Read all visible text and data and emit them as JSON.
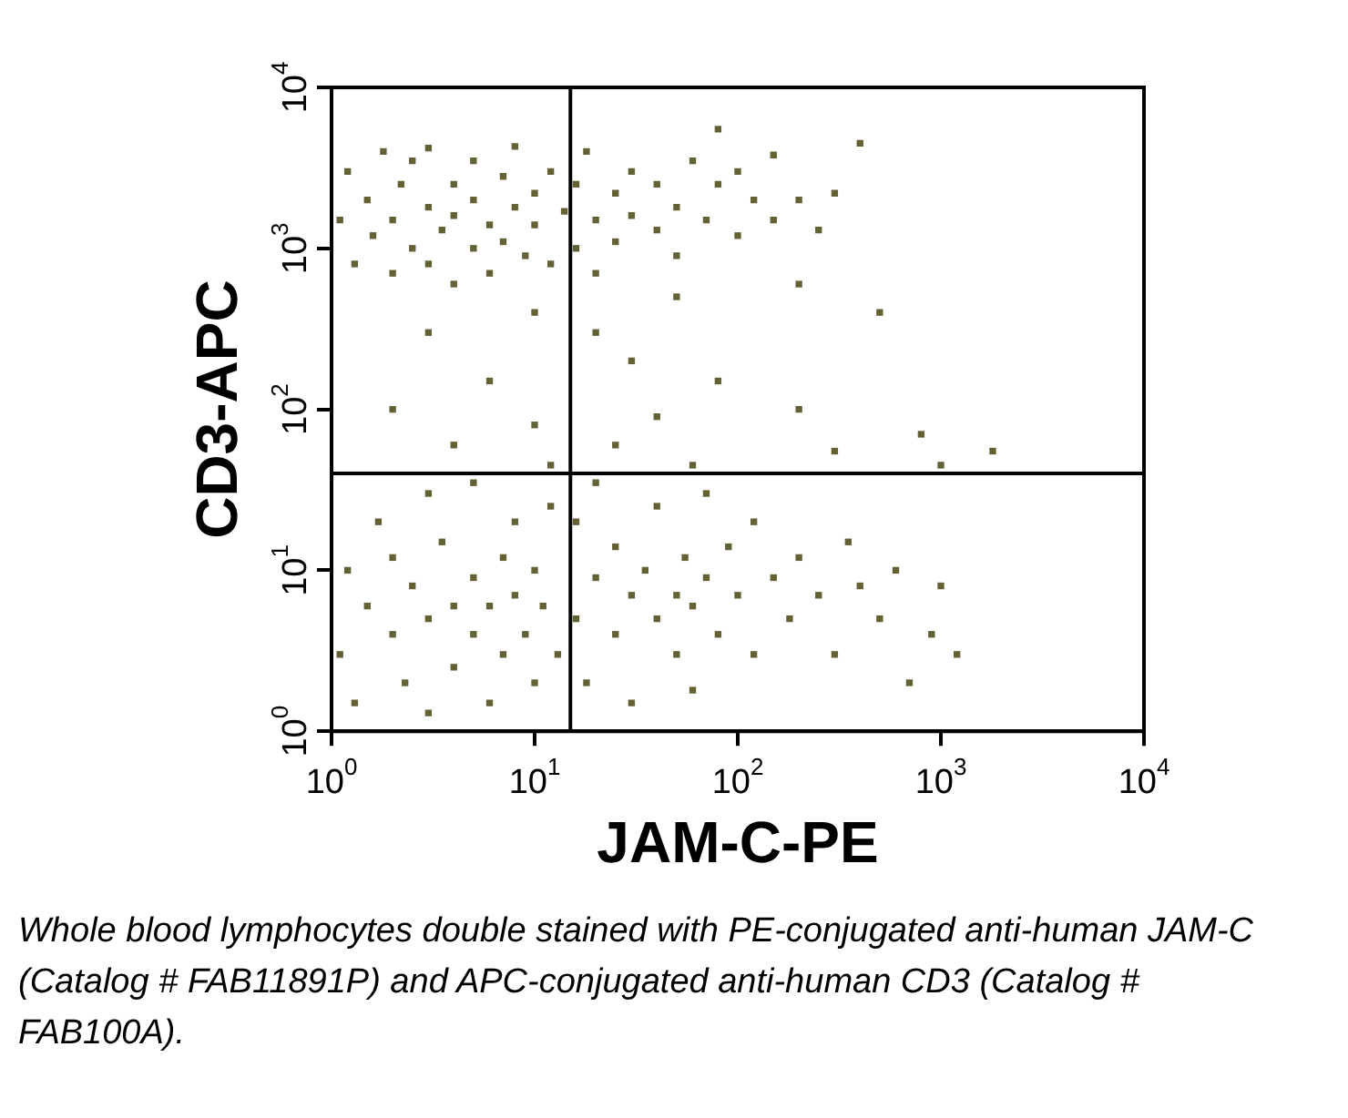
{
  "chart_data": {
    "type": "scatter",
    "xlabel": "JAM-C-PE",
    "ylabel": "CD3-APC",
    "log": "xy",
    "grid": false,
    "legend": false,
    "marker": "square",
    "xlim": [
      1,
      10000
    ],
    "ylim": [
      1,
      10000
    ],
    "xticks": [
      {
        "value": 1,
        "label": "10$^{0}$"
      },
      {
        "value": 10,
        "label": "10$^{1}$"
      },
      {
        "value": 100,
        "label": "10$^{2}$"
      },
      {
        "value": 1000,
        "label": "10$^{3}$"
      },
      {
        "value": 10000,
        "label": "10$^{4}$"
      }
    ],
    "yticks": [
      {
        "value": 1,
        "label": "10$^{0}$"
      },
      {
        "value": 10,
        "label": "10$^{1}$"
      },
      {
        "value": 100,
        "label": "10$^{2}$"
      },
      {
        "value": 1000,
        "label": "10$^{3}$"
      },
      {
        "value": 10000,
        "label": "10$^{4}$"
      }
    ],
    "ref_lines": [
      {
        "axis": "x",
        "value": 15,
        "color": "#000000"
      },
      {
        "axis": "y",
        "value": 40,
        "color": "#000000"
      }
    ],
    "series": [
      {
        "color": "#646135",
        "x": [
          1.1,
          1.2,
          1.3,
          1.5,
          1.6,
          1.8,
          2,
          2,
          2.2,
          2.5,
          2.5,
          3,
          3,
          3,
          3.5,
          4,
          4,
          4,
          5,
          5,
          5,
          6,
          6,
          7,
          7,
          8,
          8,
          9,
          10,
          10,
          12,
          12,
          14,
          16,
          16,
          18,
          20,
          20,
          25,
          25,
          30,
          30,
          40,
          40,
          50,
          50,
          60,
          70,
          80,
          100,
          100,
          120,
          150,
          150,
          200,
          250,
          300,
          400,
          80,
          200,
          3,
          6,
          10,
          20,
          30,
          50,
          80,
          10,
          4,
          25,
          60,
          200,
          300,
          500,
          800,
          1000,
          1800,
          40,
          2,
          12,
          1.1,
          1.2,
          1.3,
          1.5,
          1.7,
          2,
          2,
          2.3,
          2.5,
          3,
          3,
          3,
          3.5,
          4,
          4,
          5,
          5,
          5,
          6,
          6,
          7,
          7,
          8,
          8,
          9,
          10,
          10,
          11,
          12,
          13,
          16,
          16,
          18,
          20,
          20,
          25,
          25,
          30,
          30,
          35,
          40,
          40,
          50,
          50,
          55,
          60,
          60,
          70,
          70,
          80,
          90,
          100,
          120,
          120,
          150,
          180,
          200,
          250,
          300,
          350,
          400,
          500,
          600,
          700,
          900,
          1000,
          1200
        ],
        "values": [
          1500,
          3000,
          800,
          2000,
          1200,
          4000,
          1500,
          700,
          2500,
          1000,
          3500,
          1800,
          800,
          4200,
          1300,
          2500,
          600,
          1600,
          1000,
          3500,
          2000,
          1400,
          700,
          2800,
          1100,
          1800,
          4300,
          900,
          2200,
          1400,
          3000,
          800,
          1700,
          2500,
          1000,
          4000,
          1500,
          700,
          2200,
          1100,
          3000,
          1600,
          1300,
          2500,
          1800,
          900,
          3500,
          1500,
          2500,
          1200,
          3000,
          2000,
          1500,
          3800,
          2000,
          1300,
          2200,
          4500,
          5500,
          600,
          300,
          150,
          400,
          300,
          200,
          500,
          150,
          80,
          60,
          60,
          45,
          100,
          55,
          400,
          70,
          45,
          55,
          90,
          100,
          45,
          3,
          10,
          1.5,
          6,
          20,
          4,
          12,
          2,
          8,
          5,
          30,
          1.3,
          15,
          6,
          2.5,
          9,
          4,
          35,
          6,
          1.5,
          12,
          3,
          7,
          20,
          4,
          10,
          2,
          6,
          25,
          3,
          5,
          20,
          2,
          9,
          35,
          4,
          14,
          7,
          1.5,
          10,
          5,
          25,
          7,
          3,
          12,
          6,
          1.8,
          9,
          30,
          4,
          14,
          7,
          3,
          20,
          9,
          5,
          12,
          7,
          3,
          15,
          8,
          5,
          10,
          2,
          4,
          8,
          3
        ]
      }
    ],
    "annotations": [
      "Whole blood lymphocytes double stained with PE-conjugated anti-human JAM-C (Catalog # FAB11891P) and APC-conjugated anti-human CD3 (Catalog # FAB100A)."
    ]
  }
}
